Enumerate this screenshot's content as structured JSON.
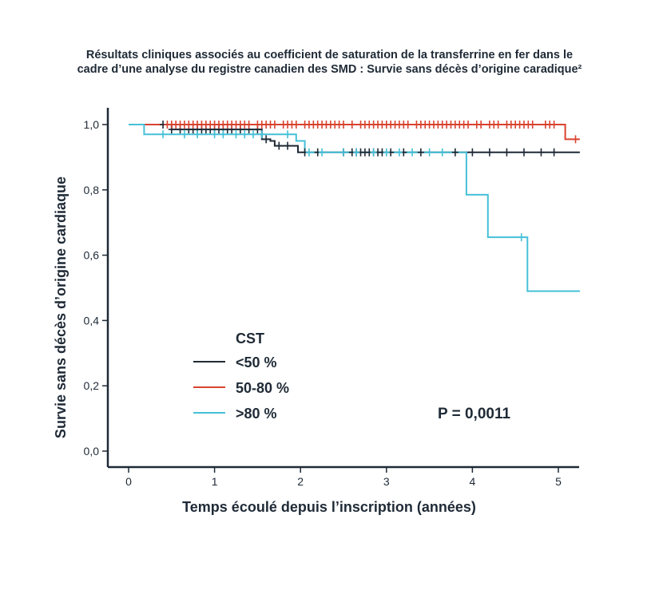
{
  "chart_data": {
    "type": "line",
    "subtype": "kaplan-meier",
    "title_line1": "Résultats cliniques associés au coefficient de saturation de la transferrine en fer dans le",
    "title_line2": "cadre d’une analyse du registre canadien des SMD : Survie sans décès d’origine caradique²",
    "xlabel": "Temps écoulé depuis l’inscription (années)",
    "ylabel": "Survie sans décès d’origine cardiaque",
    "xlim": [
      -0.25,
      5.25
    ],
    "ylim": [
      -0.05,
      1.05
    ],
    "x_ticks": [
      0,
      1,
      2,
      3,
      4,
      5
    ],
    "x_tick_labels": [
      "0",
      "1",
      "2",
      "3",
      "4",
      "5"
    ],
    "y_ticks": [
      0.0,
      0.2,
      0.4,
      0.6,
      0.8,
      1.0
    ],
    "y_tick_labels": [
      "0,0",
      "0,2",
      "0,4",
      "0,6",
      "0,8",
      "1,0"
    ],
    "legend_title": "CST",
    "p_value_label": "P = 0,0011",
    "series": [
      {
        "name": "<50 %",
        "color": "#1f2a36",
        "steps": [
          [
            0,
            1.0
          ],
          [
            0.5,
            0.985
          ],
          [
            1.55,
            0.955
          ],
          [
            1.65,
            0.95
          ],
          [
            1.7,
            0.935
          ],
          [
            1.97,
            0.915
          ],
          [
            5.25,
            0.915
          ]
        ],
        "censors": [
          0.4,
          0.5,
          0.6,
          0.7,
          0.75,
          0.8,
          0.85,
          0.9,
          0.95,
          1.0,
          1.05,
          1.1,
          1.15,
          1.2,
          1.3,
          1.4,
          1.5,
          1.6,
          1.75,
          1.85,
          2.05,
          2.2,
          2.5,
          2.6,
          2.65,
          2.7,
          2.75,
          2.8,
          2.85,
          2.9,
          2.95,
          3.05,
          3.2,
          3.4,
          3.8,
          4.0,
          4.2,
          4.4,
          4.6,
          4.8,
          4.95
        ]
      },
      {
        "name": "50-80 %",
        "color": "#d9432f",
        "steps": [
          [
            0,
            1.0
          ],
          [
            5.08,
            1.0
          ],
          [
            5.08,
            0.955
          ],
          [
            5.25,
            0.955
          ]
        ],
        "censors": [
          0.45,
          0.5,
          0.55,
          0.6,
          0.65,
          0.7,
          0.75,
          0.8,
          0.85,
          0.9,
          0.95,
          1.0,
          1.05,
          1.1,
          1.15,
          1.2,
          1.25,
          1.3,
          1.35,
          1.4,
          1.5,
          1.55,
          1.6,
          1.65,
          1.7,
          1.8,
          1.85,
          1.9,
          1.95,
          2.05,
          2.1,
          2.15,
          2.2,
          2.25,
          2.3,
          2.35,
          2.4,
          2.45,
          2.5,
          2.6,
          2.7,
          2.75,
          2.8,
          2.85,
          2.9,
          2.95,
          3.0,
          3.05,
          3.1,
          3.15,
          3.2,
          3.25,
          3.35,
          3.4,
          3.45,
          3.5,
          3.55,
          3.6,
          3.65,
          3.7,
          3.75,
          3.8,
          3.85,
          3.9,
          3.95,
          4.05,
          4.1,
          4.2,
          4.25,
          4.3,
          4.4,
          4.45,
          4.5,
          4.55,
          4.6,
          4.65,
          4.7,
          4.85,
          4.9,
          4.95,
          5.2
        ]
      },
      {
        "name": ">80 %",
        "color": "#45c0d8",
        "steps": [
          [
            0,
            1.0
          ],
          [
            0.18,
            0.97
          ],
          [
            1.95,
            0.95
          ],
          [
            2.05,
            0.915
          ],
          [
            3.93,
            0.915
          ],
          [
            3.93,
            0.785
          ],
          [
            4.18,
            0.785
          ],
          [
            4.18,
            0.655
          ],
          [
            4.64,
            0.655
          ],
          [
            4.64,
            0.49
          ],
          [
            5.25,
            0.49
          ]
        ],
        "censors": [
          0.4,
          0.65,
          0.8,
          1.0,
          1.1,
          1.25,
          1.35,
          1.45,
          1.55,
          1.85,
          2.1,
          2.25,
          2.5,
          2.65,
          2.85,
          3.0,
          3.15,
          3.3,
          3.5,
          3.65,
          4.57
        ]
      }
    ]
  }
}
